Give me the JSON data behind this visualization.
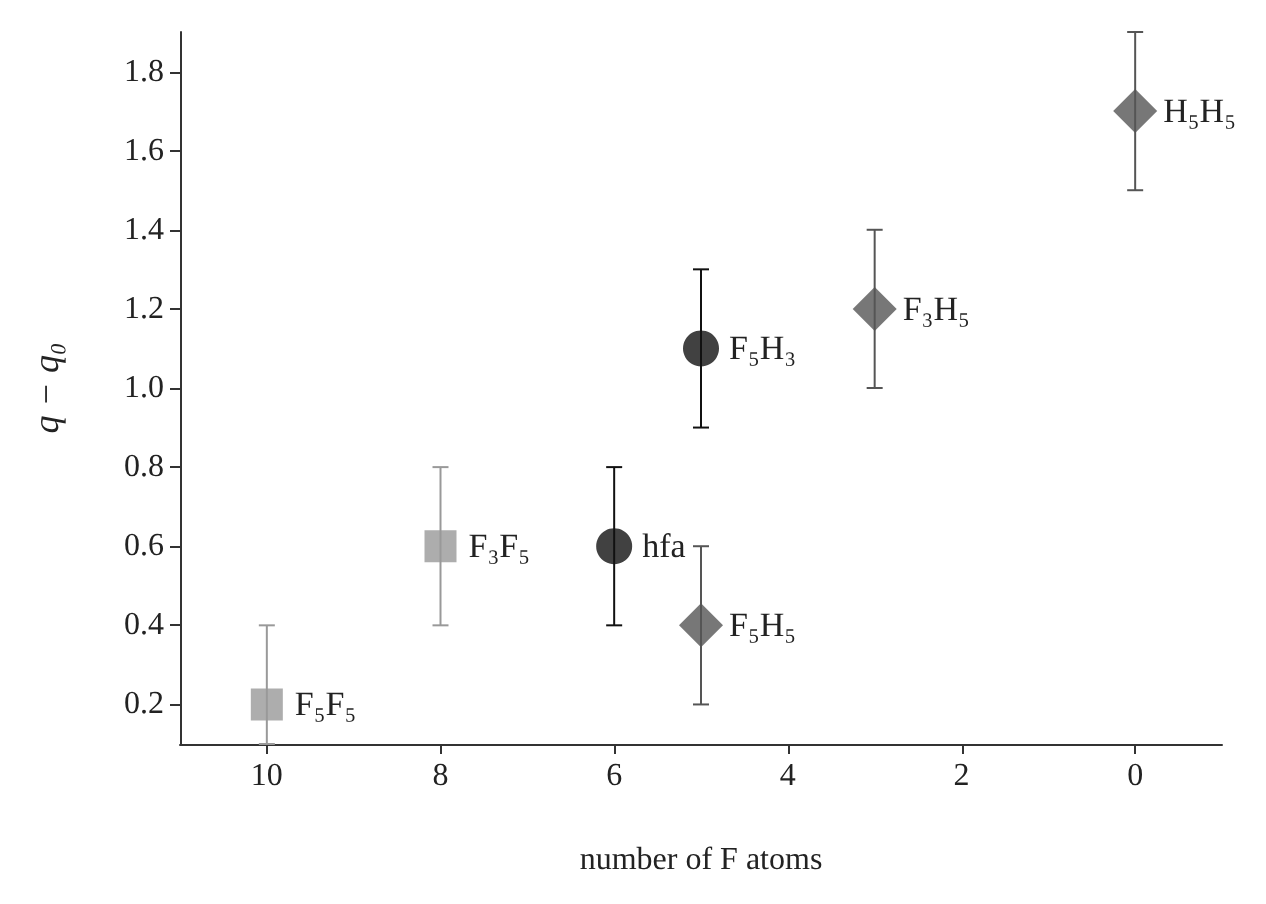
{
  "chart_data": {
    "type": "scatter",
    "xlabel": "number of F atoms",
    "ylabel": "q − q₀",
    "xlim": [
      11,
      -1
    ],
    "xticks": [
      10,
      8,
      6,
      4,
      2,
      0
    ],
    "ylim": [
      0.1,
      1.9
    ],
    "yticks": [
      0.2,
      0.4,
      0.6,
      0.8,
      {
        "value": 1,
        "label": "1.0"
      },
      1.2,
      1.4,
      1.6,
      1.8
    ],
    "series": [
      {
        "color": "#999999",
        "marker": "square",
        "x": [
          10,
          8
        ],
        "values": [
          0.2,
          0.6
        ],
        "errors": [
          [
            0.1,
            0.4
          ],
          0.2
        ]
      },
      {
        "color": "#111111",
        "marker": "circle",
        "x": [
          6,
          5
        ],
        "values": [
          0.6,
          1.1
        ],
        "errors": [
          0.2,
          0.2
        ]
      },
      {
        "color": "#555555",
        "marker": "diamond",
        "x": [
          5,
          3,
          0
        ],
        "values": [
          0.4,
          1.2,
          1.7
        ],
        "errors": [
          0.2,
          0.2,
          0.2
        ]
      }
    ],
    "annotations": [
      {
        "text": "F₅F₅",
        "x": 10,
        "y": 0.2
      },
      {
        "text": "F₃F₅",
        "x": 8,
        "y": 0.6
      },
      {
        "text": "hfa",
        "x": 6,
        "y": 0.6
      },
      {
        "text": "F₅H₃",
        "x": 5,
        "y": 1.1
      },
      {
        "text": "F₅H₅",
        "x": 5,
        "y": 0.4
      },
      {
        "text": "F₃H₅",
        "x": 3,
        "y": 1.2
      },
      {
        "text": "H₅H₅",
        "x": 0,
        "y": 1.7
      }
    ]
  }
}
